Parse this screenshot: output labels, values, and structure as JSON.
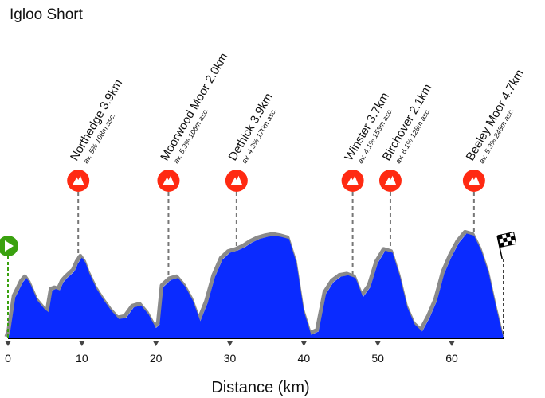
{
  "chart_data": {
    "type": "area",
    "title": "Igloo Short",
    "xlabel": "Distance (km)",
    "ylabel": "",
    "xlim": [
      0,
      67
    ],
    "x_ticks": [
      0,
      10,
      20,
      30,
      40,
      50,
      60
    ],
    "colors": {
      "fill": "#0a2bff",
      "shadow": "#8a8a8a",
      "climb_marker": "#ff2a12",
      "start_marker": "#3aa10f",
      "guide": "#777777"
    },
    "profile": {
      "x": [
        0,
        0.3,
        1,
        2,
        2.5,
        3,
        4,
        5,
        5.5,
        6,
        6.5,
        7,
        7.5,
        8,
        9,
        9.5,
        10,
        10.5,
        11,
        12,
        13,
        14,
        15,
        16,
        17,
        18,
        19,
        20,
        20.5,
        21,
        22,
        23,
        24,
        25,
        26,
        27,
        28,
        29,
        30,
        31,
        32,
        33,
        34,
        35,
        36,
        37,
        38,
        39,
        40,
        41,
        42,
        43,
        44,
        45,
        46,
        47,
        48,
        49,
        50,
        51,
        52,
        53,
        54,
        55,
        56,
        57,
        58,
        59,
        60,
        61,
        62,
        63,
        64,
        65,
        66,
        67
      ],
      "y": [
        0,
        10,
        60,
        82,
        88,
        80,
        55,
        42,
        38,
        70,
        72,
        70,
        82,
        88,
        98,
        110,
        118,
        110,
        95,
        72,
        55,
        40,
        28,
        30,
        45,
        48,
        35,
        15,
        20,
        75,
        85,
        88,
        75,
        55,
        25,
        52,
        90,
        115,
        125,
        128,
        133,
        140,
        145,
        148,
        150,
        148,
        145,
        110,
        40,
        5,
        10,
        65,
        82,
        90,
        92,
        88,
        60,
        75,
        110,
        128,
        125,
        90,
        45,
        20,
        10,
        30,
        55,
        95,
        120,
        140,
        153,
        150,
        128,
        95,
        45,
        0
      ]
    },
    "climbs": [
      {
        "name": "Northedge 3.9km",
        "stats": "av. 5% 198m asc.",
        "x": 9.5
      },
      {
        "name": "Moorwood Moor 2.0km",
        "stats": "av. 5.3% 106m asc.",
        "x": 21.7
      },
      {
        "name": "Dethick 3.9km",
        "stats": "av. 4.3% 170m asc.",
        "x": 30.9
      },
      {
        "name": "Winster 3.7km",
        "stats": "av. 4.1% 153m asc.",
        "x": 46.6
      },
      {
        "name": "Birchover 2.1km",
        "stats": "av. 6.1% 128m asc.",
        "x": 51.7
      },
      {
        "name": "Beeley Moor 4.7km",
        "stats": "av. 5.3% 248m asc.",
        "x": 63.0
      }
    ]
  }
}
